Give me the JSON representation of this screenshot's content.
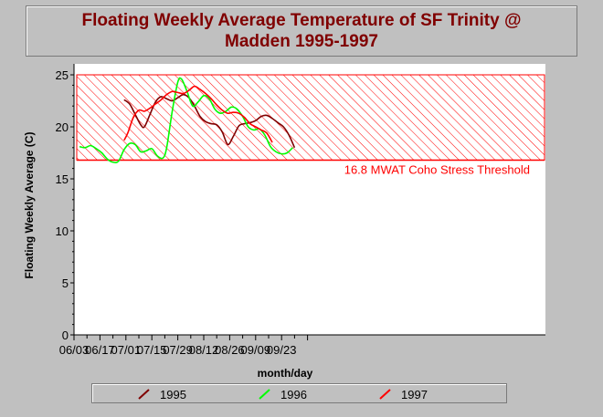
{
  "chart_data": {
    "type": "line",
    "title_lines": [
      "Floating Weekly Average Temperature of SF Trinity @",
      "Madden 1995-1997"
    ],
    "xlabel": "month/day",
    "ylabel": "Floating Weekly Average (C)",
    "x_tick_labels": [
      "06/03",
      "06/17",
      "07/01",
      "07/15",
      "07/29",
      "08/12",
      "08/26",
      "09/09",
      "09/23"
    ],
    "y_tick_labels": [
      "0",
      "5",
      "10",
      "15",
      "20",
      "25"
    ],
    "ylim": [
      0,
      25
    ],
    "grid": false,
    "legend_position": "bottom",
    "threshold": {
      "value": 16.8,
      "upper": 25,
      "label": "16.8 MWAT Coho Stress Threshold",
      "color": "#ff0000"
    },
    "series": [
      {
        "name": "1995",
        "color": "#800000",
        "points": [
          [
            "06/30",
            22.6
          ],
          [
            "07/03",
            22.2
          ],
          [
            "07/06",
            21.2
          ],
          [
            "07/09",
            20.2
          ],
          [
            "07/11",
            20.0
          ],
          [
            "07/14",
            21.2
          ],
          [
            "07/17",
            22.4
          ],
          [
            "07/20",
            22.9
          ],
          [
            "07/23",
            22.7
          ],
          [
            "07/26",
            22.5
          ],
          [
            "07/29",
            22.8
          ],
          [
            "08/01",
            23.1
          ],
          [
            "08/04",
            22.8
          ],
          [
            "08/07",
            22.0
          ],
          [
            "08/10",
            21.0
          ],
          [
            "08/13",
            20.5
          ],
          [
            "08/16",
            20.3
          ],
          [
            "08/19",
            20.2
          ],
          [
            "08/22",
            19.5
          ],
          [
            "08/25",
            18.3
          ],
          [
            "08/28",
            19.1
          ],
          [
            "08/31",
            20.1
          ],
          [
            "09/03",
            20.3
          ],
          [
            "09/06",
            20.4
          ],
          [
            "09/09",
            20.6
          ],
          [
            "09/12",
            21.0
          ],
          [
            "09/15",
            21.1
          ],
          [
            "09/18",
            20.8
          ],
          [
            "09/21",
            20.4
          ],
          [
            "09/24",
            20.0
          ],
          [
            "09/27",
            19.2
          ],
          [
            "09/30",
            18.0
          ]
        ]
      },
      {
        "name": "1996",
        "color": "#00ff00",
        "points": [
          [
            "06/06",
            18.1
          ],
          [
            "06/09",
            18.0
          ],
          [
            "06/12",
            18.2
          ],
          [
            "06/15",
            17.9
          ],
          [
            "06/18",
            17.5
          ],
          [
            "06/21",
            16.9
          ],
          [
            "06/24",
            16.6
          ],
          [
            "06/27",
            16.7
          ],
          [
            "06/30",
            17.8
          ],
          [
            "07/03",
            18.4
          ],
          [
            "07/06",
            18.3
          ],
          [
            "07/09",
            17.6
          ],
          [
            "07/12",
            17.7
          ],
          [
            "07/15",
            17.9
          ],
          [
            "07/18",
            17.2
          ],
          [
            "07/21",
            17.0
          ],
          [
            "07/23",
            18.0
          ],
          [
            "07/26",
            21.5
          ],
          [
            "07/29",
            24.3
          ],
          [
            "07/31",
            24.6
          ],
          [
            "08/03",
            23.4
          ],
          [
            "08/06",
            22.0
          ],
          [
            "08/09",
            22.4
          ],
          [
            "08/12",
            23.0
          ],
          [
            "08/15",
            22.7
          ],
          [
            "08/18",
            21.7
          ],
          [
            "08/21",
            21.3
          ],
          [
            "08/24",
            21.5
          ],
          [
            "08/27",
            21.9
          ],
          [
            "08/30",
            21.7
          ],
          [
            "09/02",
            21.0
          ],
          [
            "09/05",
            20.0
          ],
          [
            "09/08",
            19.7
          ],
          [
            "09/11",
            19.8
          ],
          [
            "09/14",
            19.2
          ],
          [
            "09/17",
            18.1
          ],
          [
            "09/20",
            17.6
          ],
          [
            "09/23",
            17.4
          ],
          [
            "09/26",
            17.5
          ],
          [
            "09/29",
            18.0
          ]
        ]
      },
      {
        "name": "1997",
        "color": "#ff0000",
        "points": [
          [
            "06/30",
            18.7
          ],
          [
            "07/02",
            19.4
          ],
          [
            "07/05",
            20.9
          ],
          [
            "07/08",
            21.6
          ],
          [
            "07/11",
            21.5
          ],
          [
            "07/14",
            21.8
          ],
          [
            "07/17",
            22.2
          ],
          [
            "07/20",
            22.6
          ],
          [
            "07/23",
            23.1
          ],
          [
            "07/26",
            23.4
          ],
          [
            "07/29",
            23.3
          ],
          [
            "08/01",
            23.2
          ],
          [
            "08/04",
            23.5
          ],
          [
            "08/07",
            23.9
          ],
          [
            "08/10",
            23.6
          ],
          [
            "08/13",
            23.2
          ],
          [
            "08/16",
            22.7
          ],
          [
            "08/19",
            22.1
          ],
          [
            "08/22",
            21.6
          ],
          [
            "08/25",
            21.3
          ],
          [
            "08/28",
            21.4
          ],
          [
            "08/31",
            21.3
          ],
          [
            "09/03",
            20.9
          ],
          [
            "09/06",
            20.3
          ],
          [
            "09/09",
            20.0
          ],
          [
            "09/12",
            19.7
          ],
          [
            "09/15",
            19.4
          ],
          [
            "09/18",
            18.5
          ]
        ]
      }
    ]
  }
}
